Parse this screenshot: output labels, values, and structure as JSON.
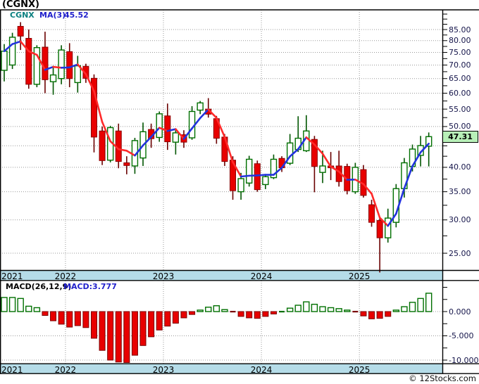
{
  "header": {
    "title": "(CGNX)"
  },
  "legend": {
    "symbol": "CGNX",
    "ma_label": "MA(3)",
    "ma_value": "45.52"
  },
  "macd_legend": {
    "label": "MACD(26,12,9)",
    "value_label": "MACD:3.777"
  },
  "price_badge": "47.31",
  "footer": {
    "copyright": "© 12Stocks.com"
  },
  "axis": {
    "price_labels": [
      {
        "text": "85.00",
        "value": 85
      },
      {
        "text": "80.00",
        "value": 80
      },
      {
        "text": "75.00",
        "value": 75
      },
      {
        "text": "70.00",
        "value": 70
      },
      {
        "text": "65.00",
        "value": 65
      },
      {
        "text": "60.00",
        "value": 60
      },
      {
        "text": "55.00",
        "value": 55
      },
      {
        "text": "50.00",
        "value": 50
      },
      {
        "text": "40.00",
        "value": 40
      },
      {
        "text": "35.00",
        "value": 35
      },
      {
        "text": "30.00",
        "value": 30
      },
      {
        "text": "25.00",
        "value": 25
      }
    ],
    "macd_labels": [
      {
        "text": "0.000",
        "value": 0
      },
      {
        "text": "-5.000",
        "value": -5
      },
      {
        "text": "-10.000",
        "value": -10
      }
    ],
    "years": [
      "2021",
      "2022",
      "2023",
      "2024",
      "2025"
    ]
  },
  "colors": {
    "background": "#FFFFFF",
    "band": "#B5DCE8",
    "grid": "#999999",
    "border": "#000000",
    "axis_text": "#15154A",
    "symbol_text": "#0A8080",
    "blue_text": "#2222CC",
    "candle_up_stroke": "#007000",
    "candle_up_fill": "#FFFFFF",
    "candle_up_wick": "#005500",
    "candle_down_fill": "#E80000",
    "candle_down_stroke": "#8B0000",
    "candle_down_wick": "#6A0000",
    "ma_up": "#2233DD",
    "ma_down": "#FF2A2A",
    "macd_pos_stroke": "#007000",
    "macd_pos_fill": "#FFFFFF",
    "macd_neg_fill": "#E80000",
    "macd_neg_stroke": "#7A0000",
    "badge_bg": "#B8F0B8"
  },
  "chart_data": {
    "type": "candlestick+macd-histogram",
    "title": "(CGNX)",
    "symbol": "CGNX",
    "ma_period": 3,
    "ma_last_value": 45.52,
    "macd_params": "26,12,9",
    "macd_last_value": 3.777,
    "last_close": 47.31,
    "price_log_scale": true,
    "price_axis_ticks": [
      85,
      80,
      75,
      70,
      65,
      60,
      55,
      50,
      45,
      40,
      35,
      30,
      25
    ],
    "macd_axis_ticks": [
      0,
      -5,
      -10
    ],
    "months": [
      "2021-05",
      "2021-06",
      "2021-07",
      "2021-08",
      "2021-09",
      "2021-10",
      "2021-11",
      "2021-12",
      "2022-01",
      "2022-02",
      "2022-03",
      "2022-04",
      "2022-05",
      "2022-06",
      "2022-07",
      "2022-08",
      "2022-09",
      "2022-10",
      "2022-11",
      "2022-12",
      "2023-01",
      "2023-02",
      "2023-03",
      "2023-04",
      "2023-05",
      "2023-06",
      "2023-07",
      "2023-08",
      "2023-09",
      "2023-10",
      "2023-11",
      "2023-12",
      "2024-01",
      "2024-02",
      "2024-03",
      "2024-04",
      "2024-05",
      "2024-06",
      "2024-07",
      "2024-08",
      "2024-09",
      "2024-10",
      "2024-11",
      "2024-12",
      "2025-01",
      "2025-02",
      "2025-03",
      "2025-04",
      "2025-05",
      "2025-06",
      "2025-07",
      "2025-08",
      "2025-09"
    ],
    "ohlc": [
      [
        68.0,
        78.5,
        64.0,
        75.5
      ],
      [
        70.0,
        83.5,
        68.5,
        81.5
      ],
      [
        86.5,
        88.5,
        76.0,
        82.0
      ],
      [
        81.0,
        85.0,
        61.5,
        63.0
      ],
      [
        63.0,
        78.0,
        62.0,
        77.0
      ],
      [
        77.2,
        84.0,
        60.0,
        64.6
      ],
      [
        63.9,
        69.7,
        59.5,
        66.3
      ],
      [
        65.0,
        78.0,
        63.0,
        76.0
      ],
      [
        75.3,
        78.9,
        62.0,
        65.0
      ],
      [
        63.6,
        73.6,
        60.2,
        69.7
      ],
      [
        69.5,
        70.5,
        63.5,
        65.1
      ],
      [
        65.1,
        66.5,
        43.4,
        47.2
      ],
      [
        48.8,
        50.0,
        40.5,
        41.5
      ],
      [
        41.6,
        50.2,
        41.1,
        49.7
      ],
      [
        48.8,
        50.8,
        39.8,
        41.3
      ],
      [
        41.0,
        42.5,
        38.5,
        40.4
      ],
      [
        40.3,
        47.0,
        38.6,
        46.3
      ],
      [
        42.1,
        51.1,
        40.3,
        48.6
      ],
      [
        49.2,
        50.8,
        44.5,
        46.8
      ],
      [
        47.1,
        54.3,
        46.0,
        53.6
      ],
      [
        53.0,
        56.7,
        44.0,
        46.0
      ],
      [
        45.9,
        49.4,
        42.9,
        48.3
      ],
      [
        47.8,
        49.0,
        44.5,
        45.9
      ],
      [
        47.0,
        55.9,
        46.5,
        54.3
      ],
      [
        54.7,
        57.5,
        53.5,
        56.9
      ],
      [
        55.0,
        58.4,
        52.5,
        53.5
      ],
      [
        52.2,
        53.0,
        45.5,
        46.9
      ],
      [
        47.2,
        48.0,
        40.3,
        41.3
      ],
      [
        41.6,
        42.5,
        33.5,
        35.2
      ],
      [
        35.0,
        38.8,
        33.5,
        37.6
      ],
      [
        36.7,
        42.6,
        36.0,
        41.8
      ],
      [
        40.8,
        41.5,
        35.0,
        35.4
      ],
      [
        36.4,
        38.5,
        35.5,
        38.0
      ],
      [
        37.8,
        42.9,
        37.5,
        41.8
      ],
      [
        42.0,
        42.5,
        39.0,
        39.9
      ],
      [
        40.9,
        48.0,
        40.5,
        45.7
      ],
      [
        44.1,
        52.9,
        43.5,
        46.9
      ],
      [
        43.8,
        53.2,
        43.5,
        48.8
      ],
      [
        46.6,
        47.5,
        34.9,
        40.2
      ],
      [
        38.9,
        43.8,
        36.7,
        40.3
      ],
      [
        40.3,
        43.5,
        37.3,
        39.9
      ],
      [
        40.3,
        43.8,
        36.0,
        37.0
      ],
      [
        40.2,
        40.8,
        34.5,
        35.2
      ],
      [
        35.0,
        41.0,
        34.6,
        40.0
      ],
      [
        39.5,
        40.5,
        33.9,
        34.3
      ],
      [
        32.6,
        33.5,
        28.9,
        29.6
      ],
      [
        29.9,
        30.5,
        22.5,
        27.2
      ],
      [
        27.2,
        31.9,
        26.5,
        30.3
      ],
      [
        29.6,
        36.5,
        28.8,
        35.6
      ],
      [
        35.6,
        42.1,
        33.9,
        41.0
      ],
      [
        40.2,
        45.3,
        39.1,
        44.2
      ],
      [
        42.7,
        47.5,
        40.2,
        45.05
      ],
      [
        44.9,
        48.4,
        40.2,
        47.31
      ]
    ],
    "macd": [
      2.9,
      2.9,
      2.7,
      1.1,
      0.8,
      -0.8,
      -1.9,
      -2.6,
      -3.2,
      -2.9,
      -3.3,
      -5.5,
      -8.0,
      -10.0,
      -10.4,
      -10.5,
      -9.0,
      -7.0,
      -5.2,
      -3.8,
      -3.0,
      -2.4,
      -1.3,
      -0.6,
      0.3,
      0.9,
      1.2,
      0.4,
      -0.2,
      -1.0,
      -1.3,
      -1.4,
      -1.0,
      -0.5,
      0.1,
      0.7,
      1.3,
      2.0,
      1.5,
      1.0,
      0.8,
      0.6,
      0.3,
      -0.2,
      -0.9,
      -1.5,
      -1.4,
      -1.0,
      0.3,
      1.0,
      1.9,
      2.7,
      3.777
    ]
  }
}
